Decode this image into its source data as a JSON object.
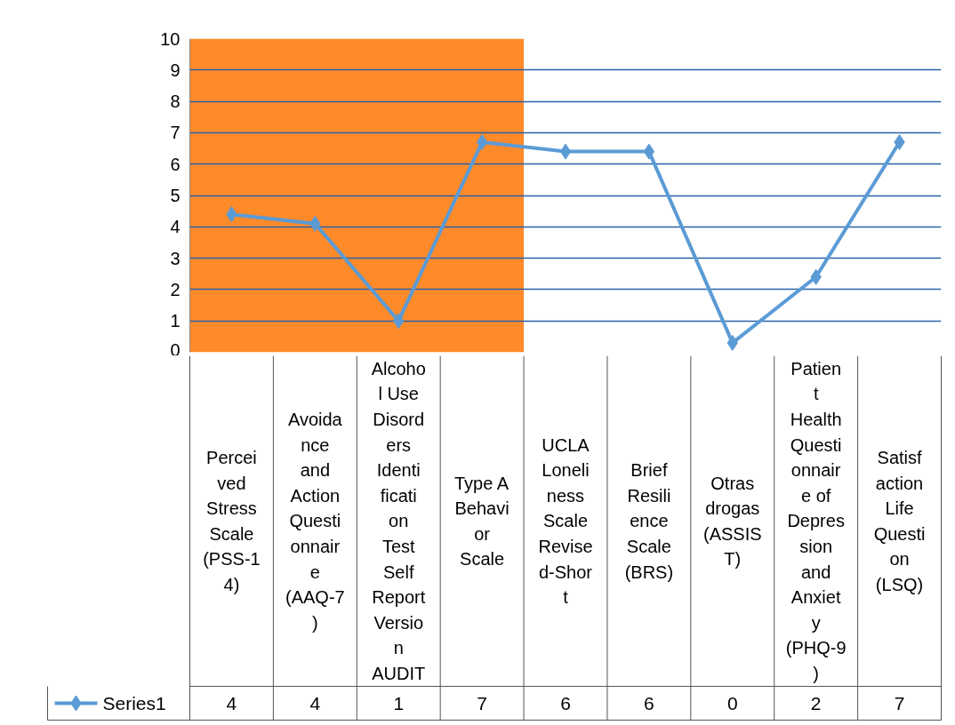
{
  "chart_data": {
    "type": "line",
    "categories": [
      "Perceived Stress Scale (PSS-14)",
      "Avoidance and Action Questionnaire (AAQ-7)",
      "Alcohol Use Disorders Identification Test Self Report Version AUDIT",
      "Type A Behavior Scale",
      "UCLA Loneliness Scale Revised-Short",
      "Brief Resilience Scale (BRS)",
      "Otras drogas (ASSIST)",
      "Patient Health Questionnaire of Depression and Anxiety (PHQ-9)",
      "Satisfaction Life Question (LSQ)"
    ],
    "series": [
      {
        "name": "Series1",
        "color": "#5b9bd5",
        "values": [
          4.4,
          4.1,
          1.0,
          6.7,
          6.4,
          6.4,
          0.3,
          2.4,
          6.7
        ],
        "value_labels": [
          "4",
          "4",
          "1",
          "7",
          "6",
          "6",
          "0",
          "2",
          "7"
        ]
      }
    ],
    "ylim": [
      0,
      10
    ],
    "yticks": [
      0,
      1,
      2,
      3,
      4,
      5,
      6,
      7,
      8,
      9,
      10
    ],
    "bands": [
      {
        "axis": "x",
        "from": "Perceived Stress Scale (PSS-14)",
        "to": "Type A Behavior Scale",
        "color": "#ff8a2a"
      }
    ],
    "grid": "y",
    "legend": "bottom",
    "marker": "diamond",
    "line_style": "solid"
  }
}
